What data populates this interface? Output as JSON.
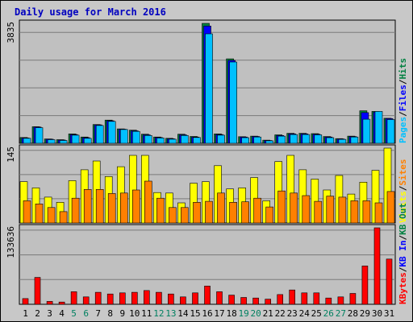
{
  "chart_data": {
    "type": "bar",
    "title": "Daily usage for March 2016",
    "categories": [
      "1",
      "2",
      "3",
      "4",
      "5",
      "6",
      "7",
      "8",
      "9",
      "10",
      "11",
      "12",
      "13",
      "14",
      "15",
      "16",
      "17",
      "18",
      "19",
      "20",
      "21",
      "22",
      "23",
      "24",
      "25",
      "26",
      "27",
      "28",
      "29",
      "30",
      "31"
    ],
    "weekend_days": [
      "5",
      "6",
      "12",
      "13",
      "19",
      "20",
      "26",
      "27"
    ],
    "panels": [
      {
        "id": "hits",
        "ymax": 3835,
        "ymax_label": "3835",
        "side_labels": [
          "Pages",
          "Files",
          "Hits"
        ],
        "series": [
          {
            "name": "Hits",
            "color": "#008040",
            "values": [
              185,
              530,
              140,
              115,
              300,
              200,
              600,
              740,
              460,
              420,
              290,
              200,
              160,
              290,
              220,
              3835,
              300,
              2700,
              210,
              230,
              100,
              270,
              320,
              320,
              310,
              215,
              150,
              230,
              1040,
              1020,
              800
            ]
          },
          {
            "name": "Files",
            "color": "#0000ff",
            "values": [
              170,
              520,
              130,
              105,
              280,
              180,
              590,
              720,
              450,
              400,
              270,
              185,
              145,
              270,
              200,
              3750,
              280,
              2650,
              200,
              220,
              90,
              250,
              300,
              300,
              290,
              200,
              140,
              215,
              980,
              1000,
              790
            ]
          },
          {
            "name": "Pages",
            "color": "#00c0ff",
            "values": [
              160,
              500,
              115,
              90,
              260,
              160,
              570,
              700,
              440,
              380,
              250,
              170,
              130,
              250,
              185,
              3500,
              260,
              2600,
              180,
              200,
              80,
              230,
              280,
              280,
              270,
              180,
              125,
              200,
              770,
              1020,
              760
            ]
          }
        ]
      },
      {
        "id": "visits",
        "ymax": 145,
        "ymax_label": "145",
        "side_labels": [
          "Visits",
          "Sites"
        ],
        "series": [
          {
            "name": "Visits",
            "color": "#ffff00",
            "values": [
              80,
              68,
              50,
              40,
              82,
              103,
              120,
              90,
              109,
              131,
              131,
              59,
              58,
              39,
              77,
              80,
              111,
              66,
              68,
              88,
              43,
              119,
              131,
              103,
              85,
              64,
              92,
              56,
              79,
              102,
              145
            ]
          },
          {
            "name": "Sites",
            "color": "#ff8000",
            "values": [
              43,
              37,
              30,
              22,
              48,
              65,
              65,
              57,
              58,
              64,
              81,
              48,
              30,
              30,
              40,
              42,
              58,
              40,
              41,
              48,
              31,
              62,
              58,
              53,
              42,
              52,
              50,
              43,
              43,
              39,
              61
            ]
          }
        ]
      },
      {
        "id": "kbytes",
        "ymax": 133636,
        "ymax_label": "133636",
        "side_labels": [
          "KBytes",
          "KB In",
          "KB Out"
        ],
        "series": [
          {
            "name": "KBytes",
            "color": "#ff0000",
            "values": [
              10000,
              47000,
              5000,
              4000,
              22000,
              13000,
              21000,
              18000,
              20000,
              21000,
              24000,
              21000,
              18000,
              13000,
              20000,
              32000,
              22000,
              16000,
              12000,
              11000,
              9000,
              17000,
              25000,
              20000,
              20000,
              11000,
              13000,
              19000,
              67000,
              133636,
              79000
            ]
          }
        ]
      }
    ]
  }
}
